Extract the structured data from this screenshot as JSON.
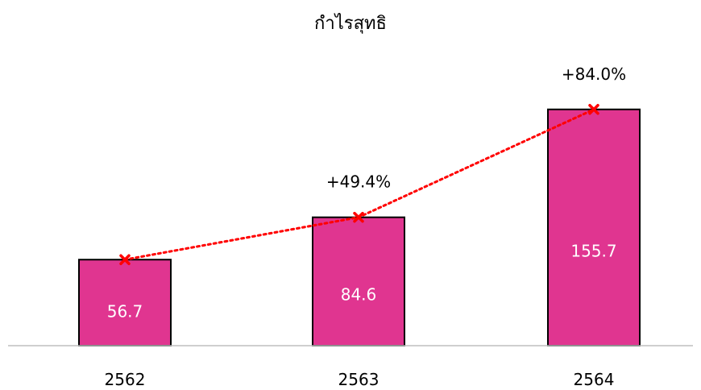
{
  "chart_data": {
    "type": "bar",
    "title": "กำไรสุทธิ",
    "categories": [
      "2562",
      "2563",
      "2564"
    ],
    "values": [
      56.7,
      84.6,
      155.7
    ],
    "value_labels": [
      "56.7",
      "84.6",
      "155.7"
    ],
    "growth_labels": [
      "",
      "+49.4%",
      "+84.0%"
    ],
    "ylim": [
      0,
      180
    ],
    "grid": false,
    "legend": "none",
    "colors": {
      "bar_fill": "#E03590",
      "bar_stroke": "#000000",
      "trend_line": "#FF0000",
      "axis": "#BFBFBF",
      "value_label": "#ffffff",
      "text": "#000000"
    }
  }
}
